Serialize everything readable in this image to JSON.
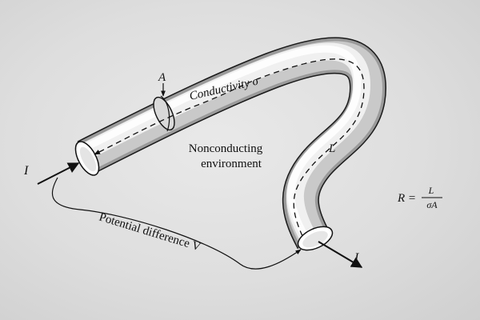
{
  "labels": {
    "area": "A",
    "conductivity": "Conductivity σ",
    "environment_line1": "Nonconducting",
    "environment_line2": "environment",
    "length": "L",
    "current_in": "I",
    "current_out": "I",
    "potential": "Potential difference V"
  },
  "formula": {
    "lhs": "R =",
    "numerator": "L",
    "denominator": "σA"
  },
  "colors": {
    "background": "#dcdcdc",
    "tube_light": "#fbfbfb",
    "tube_shadow": "#8f8f8f",
    "ink": "#111111"
  }
}
